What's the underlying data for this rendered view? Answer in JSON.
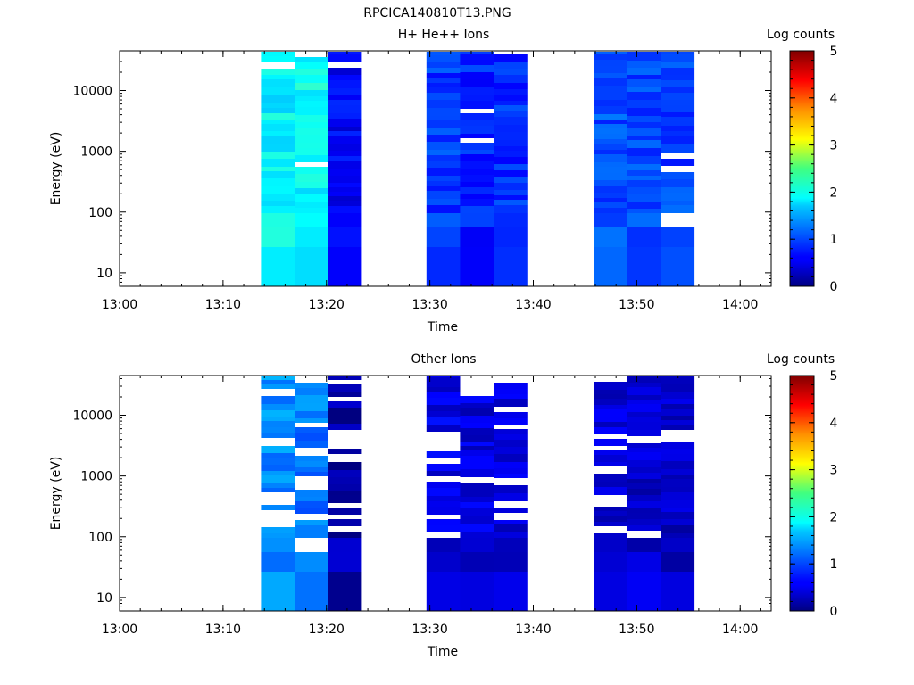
{
  "figure": {
    "title": "RPCICA140810T13.PNG"
  },
  "chart_data": [
    {
      "type": "heatmap",
      "title": "H+ He++ Ions",
      "xlabel": "Time",
      "ylabel": "Energy (eV)",
      "x_ticks": [
        "13:00",
        "13:10",
        "13:20",
        "13:30",
        "13:40",
        "13:50",
        "14:00"
      ],
      "xlim": [
        "13:00",
        "14:03"
      ],
      "y_scale": "log",
      "y_ticks": [
        "10",
        "100",
        "1000",
        "10000"
      ],
      "ylim": [
        6,
        45000
      ],
      "colorbar": {
        "label": "Log counts",
        "ticks": [
          "0",
          "1",
          "2",
          "3",
          "4",
          "5"
        ],
        "range": [
          0,
          5
        ]
      },
      "columns": [
        {
          "start": "13:13:40",
          "end": "13:16:55",
          "value": 1.85
        },
        {
          "start": "13:16:55",
          "end": "13:20:10",
          "value": 1.9
        },
        {
          "start": "13:20:10",
          "end": "13:23:25",
          "value": 0.6
        },
        {
          "start": "13:29:40",
          "end": "13:32:55",
          "value": 0.9
        },
        {
          "start": "13:32:55",
          "end": "13:36:10",
          "value": 0.8
        },
        {
          "start": "13:36:10",
          "end": "13:39:25",
          "value": 0.85
        },
        {
          "start": "13:45:50",
          "end": "13:49:05",
          "value": 1.0
        },
        {
          "start": "13:49:05",
          "end": "13:52:20",
          "value": 0.95
        },
        {
          "start": "13:52:20",
          "end": "13:55:35",
          "value": 0.95
        }
      ]
    },
    {
      "type": "heatmap",
      "title": "Other Ions",
      "xlabel": "Time",
      "ylabel": "Energy (eV)",
      "x_ticks": [
        "13:00",
        "13:10",
        "13:20",
        "13:30",
        "13:40",
        "13:50",
        "14:00"
      ],
      "xlim": [
        "13:00",
        "14:03"
      ],
      "y_scale": "log",
      "y_ticks": [
        "10",
        "100",
        "1000",
        "10000"
      ],
      "ylim": [
        6,
        45000
      ],
      "colorbar": {
        "label": "Log counts",
        "ticks": [
          "0",
          "1",
          "2",
          "3",
          "4",
          "5"
        ],
        "range": [
          0,
          5
        ]
      },
      "columns": [
        {
          "start": "13:13:40",
          "end": "13:16:55",
          "value": 1.3
        },
        {
          "start": "13:16:55",
          "end": "13:20:10",
          "value": 1.2
        },
        {
          "start": "13:20:10",
          "end": "13:23:25",
          "value": 0.2
        },
        {
          "start": "13:29:40",
          "end": "13:32:55",
          "value": 0.5
        },
        {
          "start": "13:32:55",
          "end": "13:36:10",
          "value": 0.45
        },
        {
          "start": "13:36:10",
          "end": "13:39:25",
          "value": 0.45
        },
        {
          "start": "13:45:50",
          "end": "13:49:05",
          "value": 0.4
        },
        {
          "start": "13:49:05",
          "end": "13:52:20",
          "value": 0.4
        },
        {
          "start": "13:52:20",
          "end": "13:55:35",
          "value": 0.35
        }
      ]
    }
  ]
}
